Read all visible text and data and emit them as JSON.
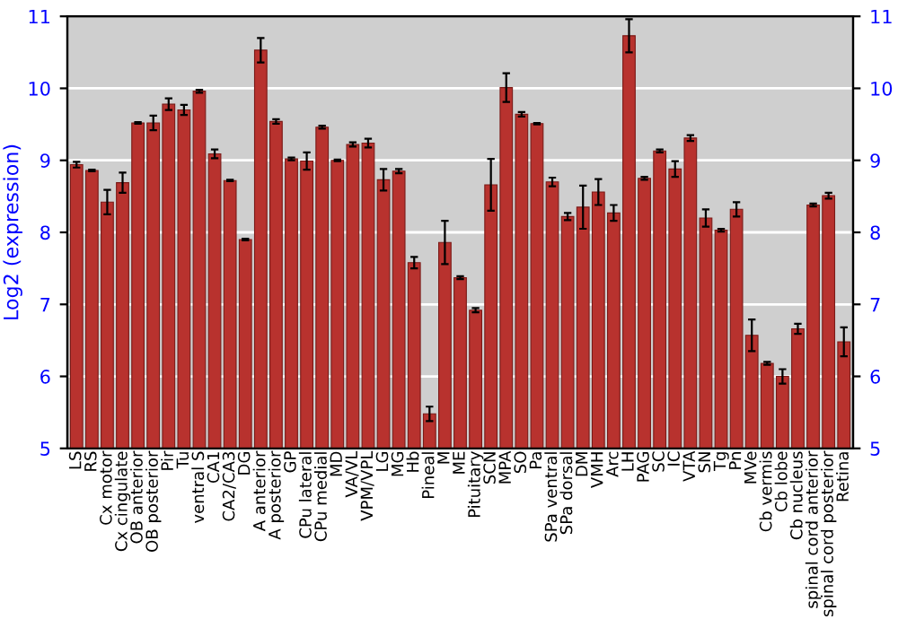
{
  "chart_data": {
    "type": "bar",
    "ylabel": "Log2 (expression)",
    "categories": [
      "LS",
      "RS",
      "Cx motor",
      "Cx cingulate",
      "OB anterior",
      "OB posterior",
      "Pir",
      "Tu",
      "ventral S",
      "CA1",
      "CA2/CA3",
      "DG",
      "A anterior",
      "A posterior",
      "GP",
      "CPu lateral",
      "CPu medial",
      "MD",
      "VA/VL",
      "VPM/VPL",
      "LG",
      "MG",
      "Hb",
      "Pineal",
      "M",
      "ME",
      "Pituitary",
      "SCN",
      "MPA",
      "SO",
      "Pa",
      "SPa ventral",
      "SPa dorsal",
      "DM",
      "VMH",
      "Arc",
      "LH",
      "PAG",
      "SC",
      "IC",
      "VTA",
      "SN",
      "Tg",
      "Pn",
      "MVe",
      "Cb vermis",
      "Cb lobe",
      "Cb nucleus",
      "spinal cord anterior",
      "spinal cord posterior",
      "Retina"
    ],
    "values": [
      8.94,
      8.86,
      8.42,
      8.69,
      9.52,
      9.52,
      9.78,
      9.7,
      9.96,
      9.09,
      8.72,
      7.9,
      10.53,
      9.54,
      9.02,
      8.99,
      9.46,
      9.0,
      9.22,
      9.24,
      8.73,
      8.85,
      7.58,
      5.48,
      7.86,
      7.37,
      6.92,
      8.66,
      10.01,
      9.64,
      9.51,
      8.7,
      8.22,
      8.35,
      8.56,
      8.27,
      10.73,
      8.75,
      9.13,
      8.88,
      9.31,
      8.2,
      8.03,
      8.32,
      6.57,
      6.18,
      6.0,
      6.66,
      8.38,
      8.51,
      6.48
    ],
    "errors": [
      0.04,
      0.01,
      0.17,
      0.14,
      0.01,
      0.1,
      0.08,
      0.07,
      0.02,
      0.06,
      0.01,
      0.01,
      0.17,
      0.03,
      0.02,
      0.12,
      0.02,
      0.01,
      0.03,
      0.06,
      0.15,
      0.03,
      0.08,
      0.1,
      0.3,
      0.02,
      0.03,
      0.36,
      0.2,
      0.03,
      0.01,
      0.06,
      0.05,
      0.3,
      0.18,
      0.11,
      0.23,
      0.02,
      0.02,
      0.11,
      0.04,
      0.12,
      0.02,
      0.1,
      0.22,
      0.02,
      0.1,
      0.07,
      0.02,
      0.04,
      0.2
    ],
    "color": "#b8322e",
    "ylim": [
      5,
      11
    ],
    "yticks": [
      5,
      6,
      7,
      8,
      9,
      10,
      11
    ],
    "y2lim": [
      5,
      11
    ],
    "y2ticks": [
      5,
      6,
      7,
      8,
      9,
      10,
      11
    ],
    "grid": "y",
    "legend": false
  }
}
